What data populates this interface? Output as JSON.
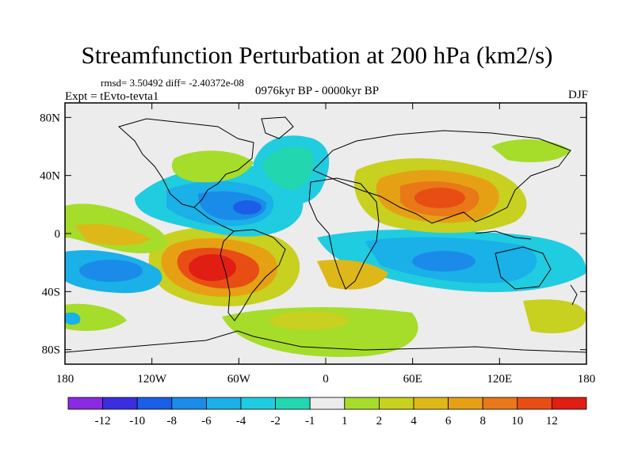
{
  "header": {
    "title": "Streamfunction Perturbation at 200 hPa (km2/s)",
    "stats": "rmsd= 3.50492 diff= -2.40372e-08",
    "experiment": "Expt = tEvto-tevta1",
    "period": "0976kyr BP - 0000kyr BP",
    "season": "DJF"
  },
  "chart_data": {
    "type": "heatmap",
    "title": "Streamfunction Perturbation at 200 hPa (km2/s)",
    "xlabel": "",
    "ylabel": "",
    "xlim": [
      -180,
      180
    ],
    "ylim": [
      -90,
      90
    ],
    "x_ticks": [
      {
        "value": -180,
        "label": "180"
      },
      {
        "value": -120,
        "label": "120W"
      },
      {
        "value": -60,
        "label": "60W"
      },
      {
        "value": 0,
        "label": "0"
      },
      {
        "value": 60,
        "label": "60E"
      },
      {
        "value": 120,
        "label": "120E"
      },
      {
        "value": 180,
        "label": "180"
      }
    ],
    "y_ticks": [
      {
        "value": 80,
        "label": "80N"
      },
      {
        "value": 40,
        "label": "40N"
      },
      {
        "value": 0,
        "label": "0"
      },
      {
        "value": -40,
        "label": "40S"
      },
      {
        "value": -80,
        "label": "80S"
      }
    ],
    "colorbar": {
      "colors": [
        "#8a2be2",
        "#3a2ee0",
        "#1a5ee8",
        "#1a8be8",
        "#1ab0e8",
        "#20cce0",
        "#22d6b0",
        "#ececec",
        "#a6dc2a",
        "#c8d020",
        "#deb818",
        "#e6a014",
        "#e87818",
        "#e84e14",
        "#e01e14"
      ],
      "labels": [
        "-12",
        "-10",
        "-8",
        "-6",
        "-4",
        "-2",
        "-1",
        "1",
        "2",
        "4",
        "6",
        "8",
        "10",
        "12"
      ]
    },
    "features": [
      {
        "name": "south-america-low-lat",
        "lon": -80,
        "lat": -25,
        "value": 12
      },
      {
        "name": "asia-high",
        "lon": 85,
        "lat": 28,
        "value": 10
      },
      {
        "name": "caribbean-low",
        "lon": -50,
        "lat": 18,
        "value": -10
      },
      {
        "name": "indian-ocean-low",
        "lon": 75,
        "lat": -20,
        "value": -8
      },
      {
        "name": "south-pacific-low",
        "lon": -150,
        "lat": -25,
        "value": -6
      },
      {
        "name": "south-atlantic-high",
        "lon": 15,
        "lat": -28,
        "value": 4
      },
      {
        "name": "north-atlantic-low",
        "lon": -20,
        "lat": 45,
        "value": -2
      }
    ]
  }
}
